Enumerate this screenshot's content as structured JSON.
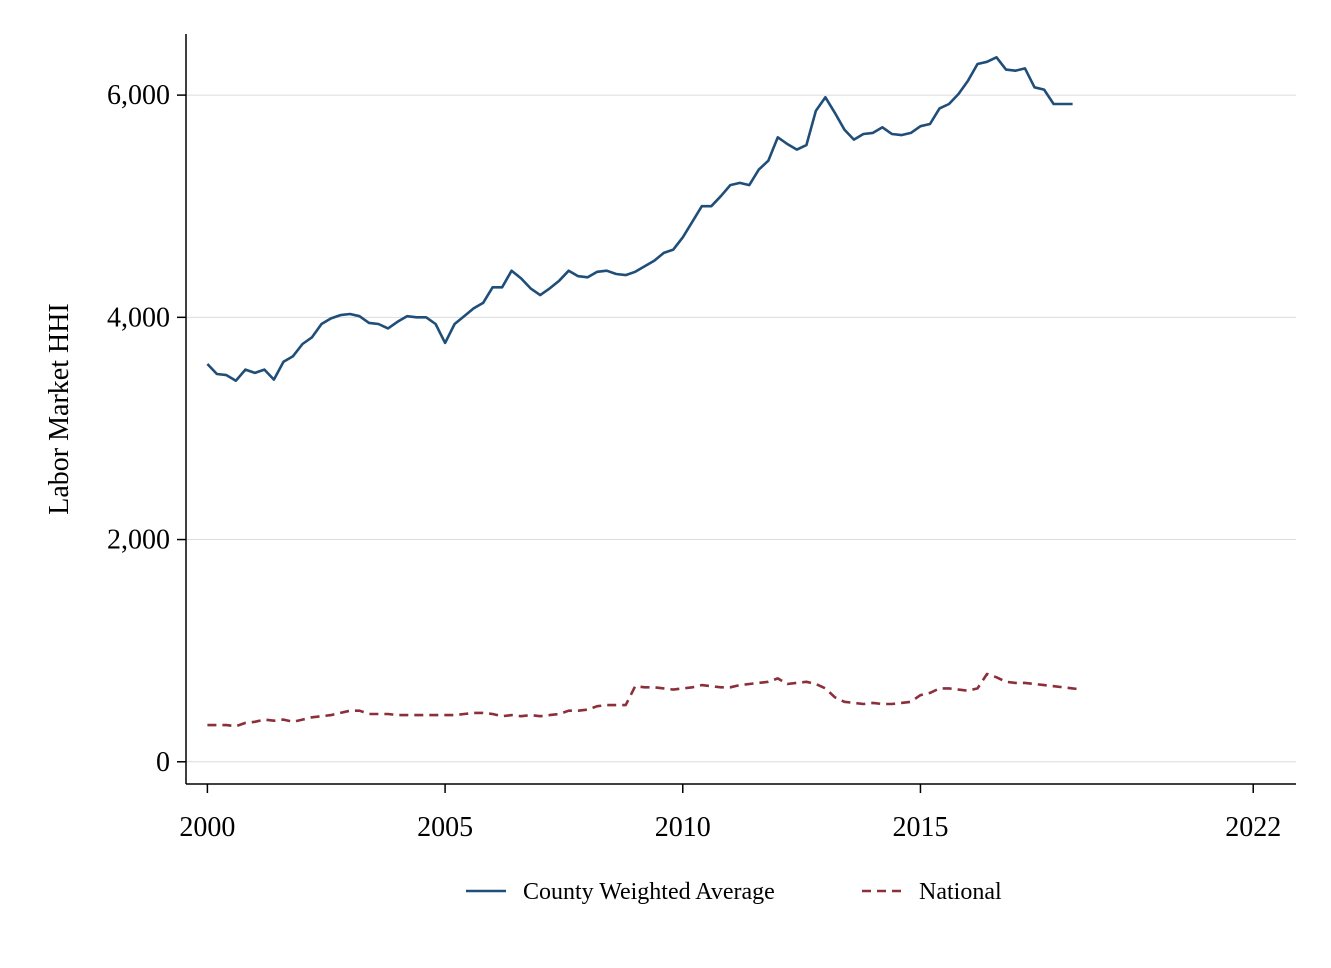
{
  "chart_data": {
    "type": "line",
    "ylabel": "Labor Market HHI",
    "xlabel": "",
    "xlim": [
      1999.55,
      2022.9
    ],
    "ylim": [
      -200,
      6550
    ],
    "grid": "horizontal",
    "legend_position": "bottom",
    "x_ticks": [
      {
        "value": 2000,
        "label": "2000"
      },
      {
        "value": 2005,
        "label": "2005"
      },
      {
        "value": 2010,
        "label": "2010"
      },
      {
        "value": 2015,
        "label": "2015"
      },
      {
        "value": 2022,
        "label": "2022"
      }
    ],
    "y_ticks": [
      {
        "value": 0,
        "label": "0"
      },
      {
        "value": 2000,
        "label": "2,000"
      },
      {
        "value": 4000,
        "label": "4,000"
      },
      {
        "value": 6000,
        "label": "6,000"
      }
    ],
    "x_start": 2000,
    "x_step": 0.2,
    "series": [
      {
        "name": "County Weighted Average",
        "color": "#1f4e79",
        "style": "solid",
        "values": [
          3580,
          3490,
          3480,
          3430,
          3530,
          3500,
          3530,
          3440,
          3600,
          3650,
          3760,
          3820,
          3940,
          3990,
          4020,
          4030,
          4010,
          3950,
          3940,
          3900,
          3960,
          4010,
          4000,
          4000,
          3940,
          3770,
          3940,
          4010,
          4080,
          4130,
          4270,
          4270,
          4420,
          4350,
          4260,
          4200,
          4260,
          4330,
          4420,
          4370,
          4360,
          4410,
          4420,
          4390,
          4380,
          4410,
          4460,
          4510,
          4580,
          4610,
          4720,
          4860,
          5000,
          5000,
          5090,
          5190,
          5210,
          5190,
          5330,
          5410,
          5620,
          5560,
          5510,
          5550,
          5860,
          5980,
          5840,
          5690,
          5600,
          5650,
          5660,
          5710,
          5650,
          5640,
          5660,
          5720,
          5740,
          5880,
          5920,
          6010,
          6130,
          6280,
          6300,
          6340,
          6230,
          6220,
          6240,
          6070,
          6050,
          5920,
          5920,
          5920
        ]
      },
      {
        "name": "National",
        "color": "#8b2f3a",
        "style": "dashed",
        "values": [
          330,
          330,
          330,
          320,
          350,
          360,
          380,
          370,
          380,
          360,
          380,
          400,
          410,
          420,
          440,
          460,
          460,
          430,
          430,
          430,
          420,
          420,
          420,
          420,
          420,
          420,
          420,
          430,
          440,
          440,
          430,
          410,
          420,
          410,
          420,
          410,
          420,
          430,
          460,
          460,
          470,
          500,
          510,
          510,
          510,
          680,
          670,
          670,
          660,
          650,
          660,
          670,
          690,
          680,
          670,
          670,
          690,
          700,
          710,
          720,
          750,
          700,
          710,
          720,
          700,
          660,
          580,
          540,
          530,
          520,
          530,
          520,
          520,
          530,
          540,
          600,
          620,
          660,
          660,
          650,
          640,
          660,
          790,
          760,
          720,
          710,
          710,
          700,
          690,
          680,
          670,
          660,
          650
        ]
      }
    ]
  }
}
